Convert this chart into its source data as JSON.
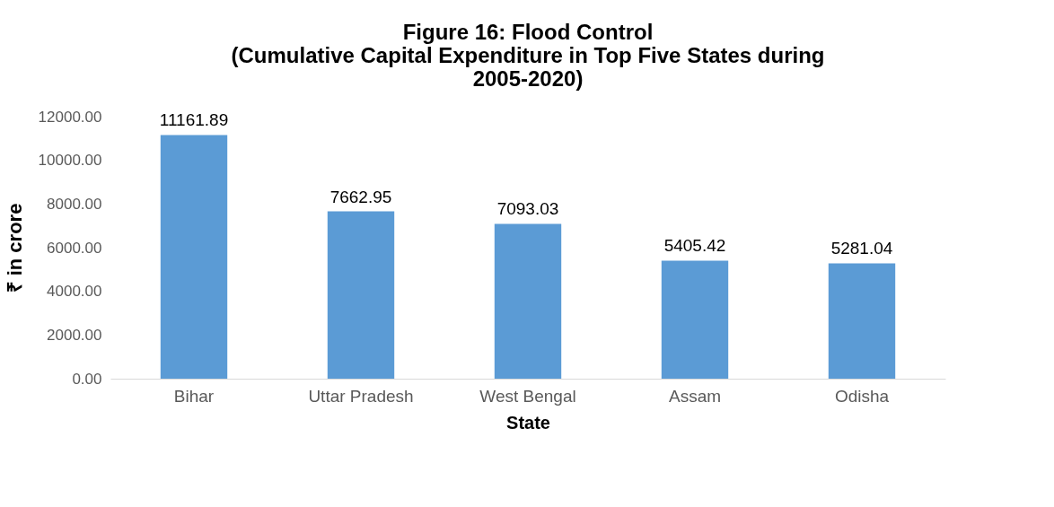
{
  "chart_data": {
    "type": "bar",
    "title": "Figure 16: Flood Control\n(Cumulative Capital Expenditure in Top Five States during\n2005-2020)",
    "xlabel": "State",
    "ylabel": "₹ in crore",
    "categories": [
      "Bihar",
      "Uttar Pradesh",
      "West Bengal",
      "Assam",
      "Odisha"
    ],
    "values": [
      11161.89,
      7662.95,
      7093.03,
      5405.42,
      5281.04
    ],
    "color": "#5b9bd5",
    "ylim": [
      0,
      12000
    ],
    "yticks": [
      {
        "value": 0,
        "label": "0.00"
      },
      {
        "value": 2000,
        "label": "2000.00"
      },
      {
        "value": 4000,
        "label": "4000.00"
      },
      {
        "value": 6000,
        "label": "6000.00"
      },
      {
        "value": 8000,
        "label": "8000.00"
      },
      {
        "value": 10000,
        "label": "10000.00"
      },
      {
        "value": 12000,
        "label": "12000.00"
      }
    ],
    "data_labels": true,
    "grid": false
  }
}
